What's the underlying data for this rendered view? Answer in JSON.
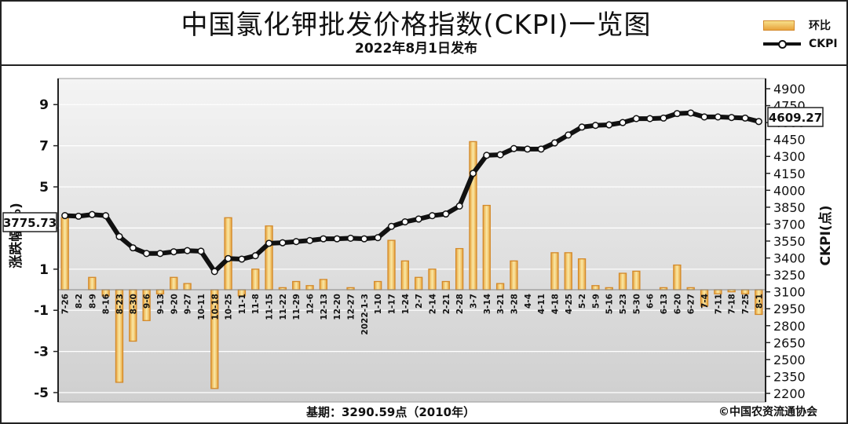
{
  "chart_data": {
    "type": "bar",
    "title": "中国氯化钾批发价格指数(CKPI)一览图",
    "subtitle": "2022年8月1日发布",
    "ylabel_left": "涨跌幅(%)",
    "ylabel_right": "CKPI(点)",
    "base_note": "基期：3290.59点（2010年）",
    "copyright": "©中国农资流通协会",
    "start_value_label": "3775.73",
    "end_value_label": "4609.27",
    "ylim_left": [
      -5,
      10
    ],
    "yticks_left": [
      9,
      7,
      5,
      3,
      1,
      -1,
      -3,
      -5
    ],
    "yticks_left_labels": [
      "9",
      "7",
      "5",
      "",
      "1",
      "-1",
      "-3",
      "-5"
    ],
    "ylim_right": [
      2200,
      5000
    ],
    "yticks_right": [
      4900,
      4750,
      4600,
      4450,
      4300,
      4150,
      4000,
      3850,
      3700,
      3550,
      3400,
      3250,
      3100,
      2950,
      2800,
      2650,
      2500,
      2350,
      2200
    ],
    "yticks_right_labels": [
      "4900",
      "4750",
      "4600",
      "4450",
      "4300",
      "4150",
      "4000",
      "3850",
      "3700",
      "3550",
      "3400",
      "3250",
      "3100",
      "2950",
      "2800",
      "2650",
      "2500",
      "2350",
      "2200"
    ],
    "categories": [
      "7-26",
      "8-2",
      "8-9",
      "8-16",
      "8-23",
      "8-30",
      "9-6",
      "9-13",
      "9-20",
      "9-27",
      "10-11",
      "10-18",
      "10-25",
      "11-1",
      "11-8",
      "11-15",
      "11-22",
      "11-29",
      "12-6",
      "12-13",
      "12-20",
      "12-27",
      "2022-1-3",
      "1-10",
      "1-17",
      "1-24",
      "2-7",
      "2-14",
      "2-21",
      "2-28",
      "3-7",
      "3-14",
      "3-21",
      "3-28",
      "4-4",
      "4-11",
      "4-18",
      "4-25",
      "5-2",
      "5-9",
      "5-16",
      "5-23",
      "5-30",
      "6-6",
      "6-13",
      "6-20",
      "6-27",
      "7-4",
      "7-11",
      "7-18",
      "7-25",
      "8-1"
    ],
    "series": [
      {
        "name": "环比",
        "type": "bar",
        "axis": "left",
        "values": [
          3.5,
          0.0,
          0.6,
          -0.3,
          -4.5,
          -2.5,
          -1.5,
          -0.2,
          0.6,
          0.3,
          0.0,
          -4.8,
          3.5,
          -0.3,
          1.0,
          3.1,
          0.1,
          0.4,
          0.2,
          0.5,
          0.0,
          0.1,
          0.0,
          0.4,
          2.4,
          1.4,
          0.6,
          1.0,
          0.4,
          2.0,
          7.2,
          4.1,
          0.3,
          1.4,
          0.0,
          0.0,
          1.8,
          1.8,
          1.5,
          0.2,
          0.1,
          0.8,
          0.9,
          0.0,
          0.1,
          1.2,
          0.1,
          -0.8,
          -0.2,
          -0.1,
          -0.2,
          -1.2
        ]
      },
      {
        "name": "CKPI",
        "type": "line",
        "axis": "right",
        "values": [
          3775.73,
          3770,
          3785,
          3775,
          3590,
          3490,
          3440,
          3440,
          3455,
          3465,
          3460,
          3280,
          3395,
          3390,
          3420,
          3530,
          3535,
          3545,
          3555,
          3570,
          3570,
          3575,
          3570,
          3580,
          3680,
          3720,
          3745,
          3775,
          3790,
          3860,
          4150,
          4310,
          4315,
          4370,
          4365,
          4365,
          4420,
          4490,
          4560,
          4575,
          4580,
          4600,
          4635,
          4635,
          4640,
          4680,
          4685,
          4650,
          4650,
          4645,
          4640,
          4609.27
        ]
      }
    ],
    "colors": {
      "bar_fill": "#f2c66a",
      "bar_edge": "#d3892a",
      "line": "#111111",
      "marker_fill": "#ffffff",
      "plot_bg": "#e2e2e2",
      "grid": "#ffffff"
    },
    "grid": true,
    "legend": "top-right"
  }
}
